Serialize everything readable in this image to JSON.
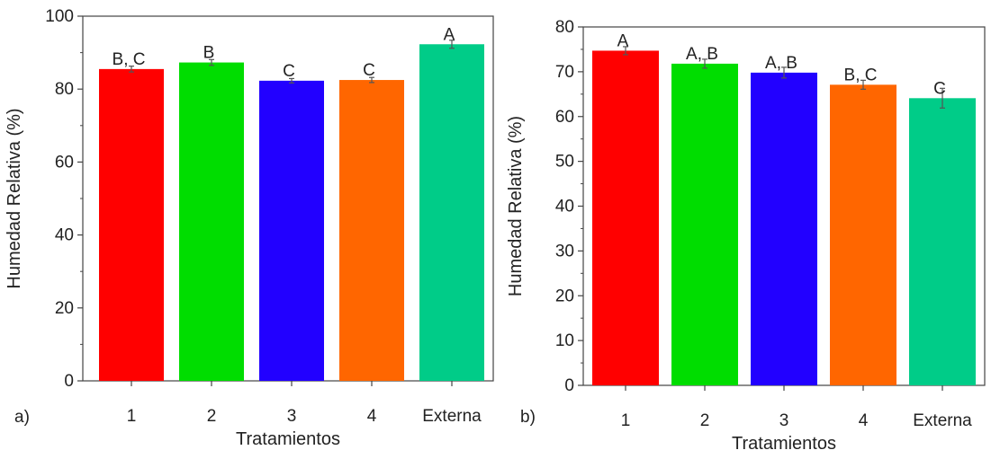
{
  "chart_data": [
    {
      "type": "bar",
      "panel_label": "a)",
      "categories": [
        "1",
        "2",
        "3",
        "4",
        "Externa"
      ],
      "values": [
        85.5,
        87.3,
        82.3,
        82.5,
        92.3
      ],
      "errors": [
        0.8,
        0.8,
        0.6,
        0.7,
        1.1
      ],
      "letters": [
        "B, C",
        "B",
        "C",
        "C",
        "A"
      ],
      "colors": [
        "#ff0000",
        "#00dd00",
        "#2200ff",
        "#ff6600",
        "#00cc88"
      ],
      "xlabel": "Tratamientos",
      "ylabel": "Humedad Relativa (%)",
      "ylim": [
        0,
        100
      ],
      "yticks": [
        0,
        20,
        40,
        60,
        80,
        100
      ],
      "grid": false,
      "legend": "none"
    },
    {
      "type": "bar",
      "panel_label": "b)",
      "categories": [
        "1",
        "2",
        "3",
        "4",
        "Externa"
      ],
      "values": [
        74.7,
        71.8,
        69.8,
        67.1,
        64.1
      ],
      "errors": [
        0.9,
        1.0,
        1.2,
        1.0,
        2.2
      ],
      "letters": [
        "A",
        "A, B",
        "A, B",
        "B, C",
        "C"
      ],
      "colors": [
        "#ff0000",
        "#00dd00",
        "#2200ff",
        "#ff6600",
        "#00cc88"
      ],
      "xlabel": "Tratamientos",
      "ylabel": "Humedad Relativa (%)",
      "ylim": [
        0,
        80
      ],
      "yticks": [
        0,
        10,
        20,
        30,
        40,
        50,
        60,
        70,
        80
      ],
      "grid": false,
      "legend": "none"
    }
  ]
}
